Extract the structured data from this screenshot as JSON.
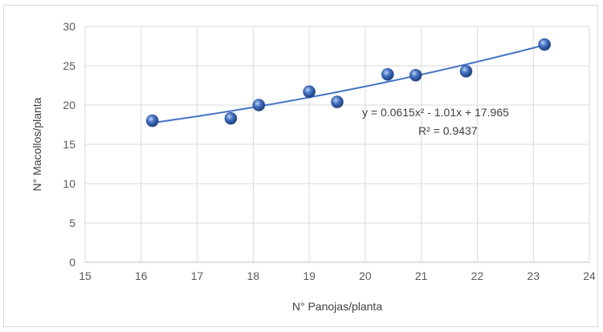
{
  "chart_data": {
    "type": "scatter",
    "xlabel": "N° Panojas/planta",
    "ylabel": "N° Macollos/planta",
    "xlim": [
      15,
      24
    ],
    "ylim": [
      0,
      30
    ],
    "x_ticks": [
      "15",
      "16",
      "17",
      "18",
      "19",
      "20",
      "21",
      "22",
      "23",
      "24"
    ],
    "y_ticks": [
      "0",
      "5",
      "10",
      "15",
      "20",
      "25",
      "30"
    ],
    "grid": true,
    "legend": "none",
    "series": [
      {
        "points": [
          {
            "x": 16.2,
            "y": 18.0
          },
          {
            "x": 17.6,
            "y": 18.3
          },
          {
            "x": 18.1,
            "y": 20.0
          },
          {
            "x": 19.0,
            "y": 21.7
          },
          {
            "x": 19.5,
            "y": 20.4
          },
          {
            "x": 20.4,
            "y": 23.9
          },
          {
            "x": 20.9,
            "y": 23.8
          },
          {
            "x": 21.8,
            "y": 24.3
          },
          {
            "x": 23.2,
            "y": 27.7
          }
        ],
        "color": "#4472c4"
      }
    ],
    "trendline": {
      "type": "polynomial",
      "coefficients": {
        "a": 0.0615,
        "b": -1.01,
        "c": 17.965
      },
      "x_range": [
        16.2,
        23.2
      ],
      "color": "#4472c4",
      "equation_text": "y = 0.0615x² - 1.01x + 17.965",
      "r2_text": "R² = 0.9437"
    }
  }
}
